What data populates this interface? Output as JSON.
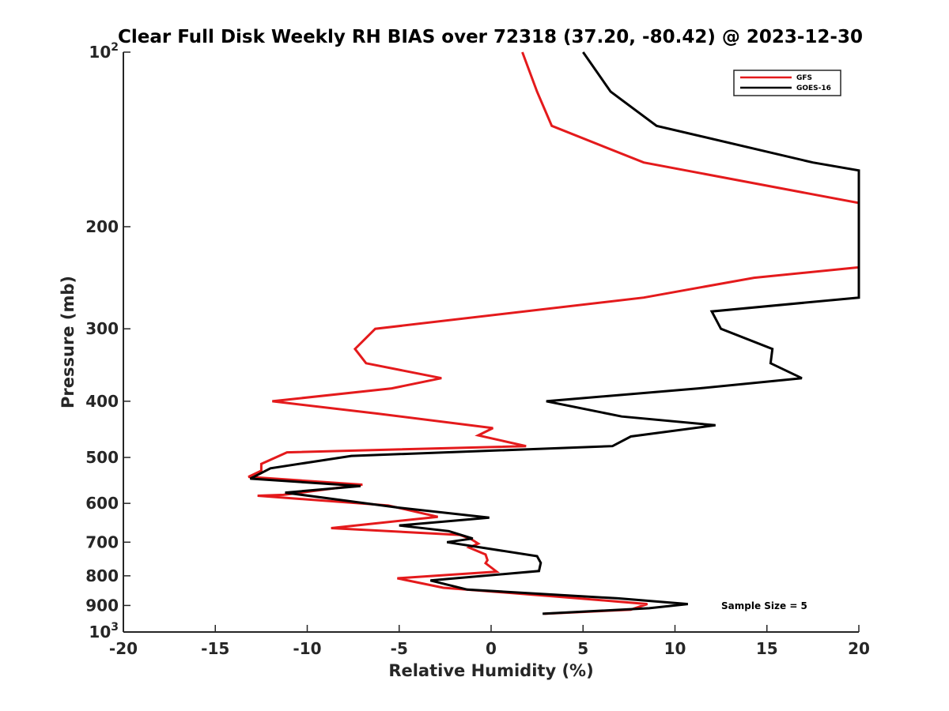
{
  "chart_data": {
    "type": "line",
    "title": "Clear Full Disk Weekly RH BIAS over 72318 (37.20, -80.42) @ 2023-12-30",
    "xlabel": "Relative Humidity (%)",
    "ylabel": "Pressure (mb)",
    "xlim": [
      -20,
      20
    ],
    "ylim": [
      100,
      1000
    ],
    "y_scale": "log",
    "y_reversed": true,
    "grid": false,
    "legend_position": "top-right",
    "x_ticks": [
      "-20",
      "-15",
      "-10",
      "-5",
      "0",
      "5",
      "10",
      "15",
      "20"
    ],
    "y_ticks": [
      {
        "value": 100,
        "base": "10",
        "exp": "2"
      },
      {
        "value": 200,
        "label": "200"
      },
      {
        "value": 300,
        "label": "300"
      },
      {
        "value": 400,
        "label": "400"
      },
      {
        "value": 500,
        "label": "500"
      },
      {
        "value": 600,
        "label": "600"
      },
      {
        "value": 700,
        "label": "700"
      },
      {
        "value": 800,
        "label": "800"
      },
      {
        "value": 900,
        "label": "900"
      },
      {
        "value": 1000,
        "base": "10",
        "exp": "3"
      }
    ],
    "series": [
      {
        "name": "GFS",
        "color": "#e41a1c",
        "points": [
          [
            1.7,
            100
          ],
          [
            2.5,
            117
          ],
          [
            3.3,
            134
          ],
          [
            8.3,
            155
          ],
          [
            20,
            182
          ],
          [
            20,
            235
          ],
          [
            14.3,
            245
          ],
          [
            8.3,
            265
          ],
          [
            -6.3,
            300
          ],
          [
            -7.4,
            325
          ],
          [
            -6.8,
            344
          ],
          [
            -2.7,
            365
          ],
          [
            -5.4,
            380
          ],
          [
            -11.9,
            400
          ],
          [
            -6.2,
            420
          ],
          [
            0.1,
            445
          ],
          [
            -0.7,
            458
          ],
          [
            1.9,
            478
          ],
          [
            -11.1,
            490
          ],
          [
            -12.5,
            513
          ],
          [
            -12.5,
            527
          ],
          [
            -13.2,
            540
          ],
          [
            -7.0,
            557
          ],
          [
            -11.3,
            580
          ],
          [
            -12.7,
            582
          ],
          [
            -5.6,
            605
          ],
          [
            -2.9,
            633
          ],
          [
            -8.7,
            662
          ],
          [
            -1.7,
            680
          ],
          [
            -1.1,
            691
          ],
          [
            -0.7,
            704
          ],
          [
            -1.2,
            715
          ],
          [
            -0.3,
            735
          ],
          [
            -0.2,
            752
          ],
          [
            -0.3,
            761
          ],
          [
            0.3,
            787
          ],
          [
            -5.1,
            808
          ],
          [
            -2.6,
            839
          ],
          [
            3.6,
            869
          ],
          [
            8.5,
            895
          ],
          [
            7.6,
            915
          ],
          [
            2.9,
            930
          ]
        ]
      },
      {
        "name": "GOES-16",
        "color": "#000000",
        "points": [
          [
            5.0,
            100
          ],
          [
            6.5,
            117
          ],
          [
            9.0,
            134
          ],
          [
            17.5,
            155
          ],
          [
            20,
            160
          ],
          [
            20,
            265
          ],
          [
            12.0,
            280
          ],
          [
            12.5,
            300
          ],
          [
            15.3,
            325
          ],
          [
            15.2,
            344
          ],
          [
            16.9,
            365
          ],
          [
            11.3,
            380
          ],
          [
            3.0,
            400
          ],
          [
            7.1,
            425
          ],
          [
            12.2,
            440
          ],
          [
            7.6,
            460
          ],
          [
            6.6,
            478
          ],
          [
            -7.6,
            497
          ],
          [
            -12.0,
            522
          ],
          [
            -13.1,
            544
          ],
          [
            -7.1,
            560
          ],
          [
            -11.2,
            575
          ],
          [
            -5.1,
            610
          ],
          [
            -0.1,
            635
          ],
          [
            -5.0,
            655
          ],
          [
            -2.3,
            670
          ],
          [
            -1.0,
            690
          ],
          [
            -2.4,
            700
          ],
          [
            2.5,
            740
          ],
          [
            2.7,
            760
          ],
          [
            2.6,
            785
          ],
          [
            -3.3,
            815
          ],
          [
            -1.3,
            845
          ],
          [
            6.9,
            875
          ],
          [
            10.7,
            895
          ],
          [
            8.6,
            910
          ],
          [
            2.8,
            930
          ]
        ]
      }
    ],
    "legend": [
      "GFS",
      "GOES-16"
    ],
    "annotation": "Sample Size = 5"
  }
}
